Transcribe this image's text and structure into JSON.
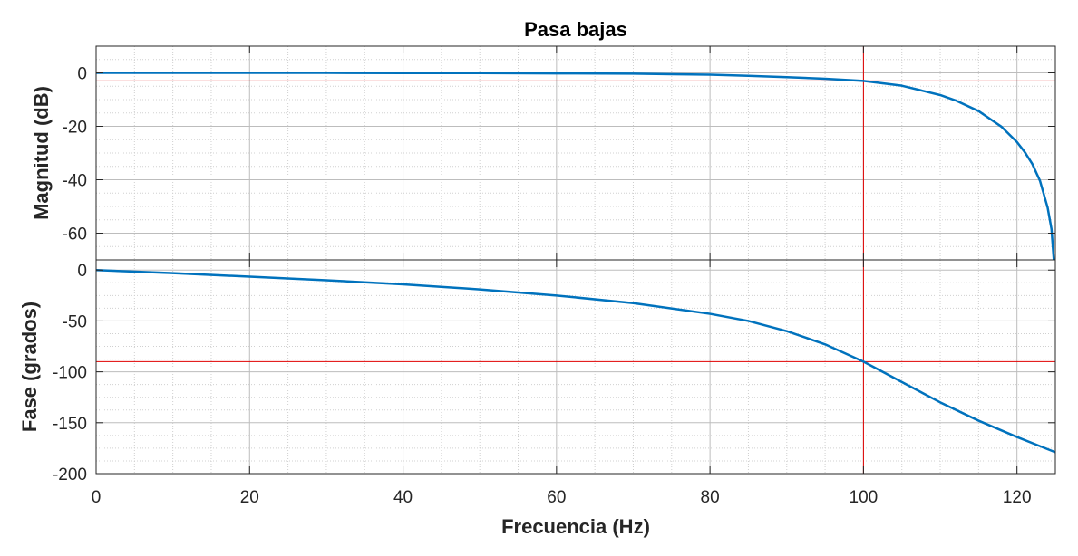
{
  "chart_data": [
    {
      "type": "line",
      "title": "Pasa bajas",
      "xlabel": "",
      "ylabel": "Magnitud (dB)",
      "xlim": [
        0,
        125
      ],
      "ylim": [
        -70,
        10
      ],
      "xticks": [
        0,
        20,
        40,
        60,
        80,
        100,
        120
      ],
      "yticks": [
        0,
        -20,
        -40,
        -60
      ],
      "grid": true,
      "minor_grid": true,
      "reference_lines": {
        "x": 100,
        "y": -3,
        "color": "#e00000"
      },
      "series": [
        {
          "color": "#0072BD",
          "x": [
            0,
            10,
            20,
            30,
            40,
            50,
            60,
            70,
            75,
            80,
            85,
            90,
            95,
            100,
            105,
            110,
            112,
            115,
            118,
            120,
            121,
            122,
            123,
            124,
            124.5,
            124.8
          ],
          "y": [
            0,
            0,
            0,
            0,
            -0.1,
            -0.1,
            -0.2,
            -0.3,
            -0.5,
            -0.7,
            -1.1,
            -1.6,
            -2.2,
            -3.0,
            -4.8,
            -8.3,
            -10.3,
            -14.3,
            -20.2,
            -25.9,
            -29.6,
            -34.1,
            -40.4,
            -50.5,
            -58.5,
            -70
          ]
        }
      ]
    },
    {
      "type": "line",
      "title": "",
      "xlabel": "Frecuencia (Hz)",
      "ylabel": "Fase (grados)",
      "xlim": [
        0,
        125
      ],
      "ylim": [
        -200,
        10
      ],
      "xticks": [
        0,
        20,
        40,
        60,
        80,
        100,
        120
      ],
      "xticklabels": [
        "0",
        "20",
        "40",
        "60",
        "80",
        "100",
        "120"
      ],
      "yticks": [
        0,
        -50,
        -100,
        -150,
        -200
      ],
      "grid": true,
      "minor_grid": true,
      "reference_lines": {
        "x": 100,
        "y": -90,
        "color": "#e00000"
      },
      "series": [
        {
          "color": "#0072BD",
          "x": [
            0,
            10,
            20,
            30,
            40,
            50,
            60,
            70,
            80,
            85,
            90,
            95,
            100,
            105,
            110,
            115,
            120,
            125
          ],
          "y": [
            0,
            -3,
            -6.5,
            -10,
            -14,
            -19,
            -25,
            -32.5,
            -43,
            -50,
            -60,
            -73,
            -90,
            -110,
            -130,
            -148,
            -164,
            -179
          ]
        }
      ]
    }
  ]
}
